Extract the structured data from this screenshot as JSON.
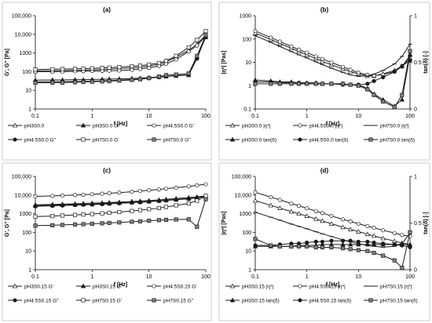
{
  "colors": {
    "frame": "#bfbfbf",
    "series": "#1a1a1a",
    "marker_fill_open": "#ffffff",
    "marker_fill_gray": "#808080"
  },
  "chart_data": [
    {
      "panel_label": "(a)",
      "type": "line",
      "x_scale": "log",
      "xlim": [
        0.1,
        100
      ],
      "xlabel": "f [Hz]",
      "x_ticks": [
        "0.1",
        "1",
        "10",
        "100"
      ],
      "y_scale": "log",
      "ylim": [
        1,
        100000
      ],
      "ylabel": "G', G'' [Pa]",
      "y_ticks": [
        "1",
        "10",
        "100",
        "1000",
        "10,000",
        "100,000"
      ],
      "x": [
        0.1,
        0.2,
        0.3,
        0.5,
        0.7,
        1,
        1.5,
        2,
        3,
        5,
        7,
        10,
        15,
        20,
        30,
        50,
        70,
        100
      ],
      "legend": {
        "placement": "bottom",
        "columns": 3
      },
      "series": [
        {
          "name": "pH3S0.0",
          "marker": "triangle-open",
          "y_axis": "left",
          "values": [
            110,
            112,
            114,
            118,
            120,
            125,
            130,
            135,
            145,
            160,
            175,
            200,
            250,
            330,
            600,
            1400,
            3000,
            9000
          ]
        },
        {
          "name": "pH3S0.0 G''",
          "marker": "triangle-filled",
          "y_axis": "left",
          "values": [
            35,
            36,
            36,
            37,
            37,
            38,
            39,
            40,
            41,
            43,
            45,
            48,
            52,
            55,
            60,
            65,
            600,
            7000
          ]
        },
        {
          "name": "pH4.5S0.0  G'",
          "marker": "circle-open",
          "y_axis": "left",
          "values": [
            100,
            100,
            102,
            104,
            106,
            108,
            110,
            112,
            115,
            125,
            140,
            160,
            200,
            260,
            450,
            1200,
            2500,
            8000
          ]
        },
        {
          "name": "pH4.5S0.0  G''",
          "marker": "circle-filled",
          "y_axis": "left",
          "values": [
            28,
            29,
            29,
            30,
            30,
            31,
            32,
            33,
            35,
            38,
            40,
            45,
            50,
            55,
            62,
            68,
            500,
            8000
          ]
        },
        {
          "name": "pH7S0.0 G'",
          "marker": "square-open",
          "y_axis": "left",
          "values": [
            130,
            135,
            138,
            142,
            146,
            150,
            158,
            165,
            175,
            195,
            210,
            240,
            290,
            380,
            700,
            2000,
            5000,
            15000
          ]
        },
        {
          "name": "pH7S0.0 G''",
          "marker": "square-gray",
          "y_axis": "left",
          "values": [
            25,
            26,
            26,
            27,
            28,
            29,
            30,
            31,
            33,
            36,
            39,
            45,
            55,
            65,
            70,
            80,
            700,
            9000
          ]
        }
      ]
    },
    {
      "panel_label": "(b)",
      "type": "line",
      "x_scale": "log",
      "xlim": [
        0.1,
        100
      ],
      "xlabel": "f [Hz]",
      "x_ticks": [
        "0.1",
        "1",
        "10",
        "100"
      ],
      "y_scale": "log",
      "ylim": [
        0.1,
        1000
      ],
      "ylabel": "|η*| [Pas]",
      "y_ticks": [
        "0.1",
        "1",
        "10",
        "100",
        "1000"
      ],
      "y2_scale": "linear",
      "y2lim": [
        0,
        1
      ],
      "y2label": "tan(δ) [-]",
      "y2_ticks": [
        "0",
        "0.5",
        "1"
      ],
      "x": [
        0.1,
        0.2,
        0.3,
        0.5,
        0.7,
        1,
        1.5,
        2,
        3,
        5,
        7,
        10,
        15,
        20,
        30,
        50,
        70,
        100
      ],
      "legend": {
        "placement": "bottom",
        "columns": 3
      },
      "series": [
        {
          "name": "pH3S0.0  |η*|",
          "marker": "triangle-open",
          "y_axis": "left",
          "values": [
            180,
            95,
            64,
            40,
            29,
            21,
            14.5,
            11,
            7.8,
            5.2,
            4.0,
            3.2,
            2.6,
            2.6,
            3.2,
            4.5,
            7,
            15
          ]
        },
        {
          "name": "pH4.5S0.0  |η*|",
          "marker": "circle-open",
          "y_axis": "left",
          "values": [
            220,
            115,
            78,
            48,
            35,
            26,
            18,
            14,
            9.8,
            6.4,
            4.8,
            3.6,
            2.9,
            2.7,
            3.0,
            4.0,
            6.5,
            20
          ]
        },
        {
          "name": "pH7S0.0 |η*|",
          "marker": "line-open",
          "y_axis": "left",
          "values": [
            140,
            72,
            48,
            29,
            21,
            15.5,
            10.5,
            8,
            5.6,
            3.7,
            2.9,
            2.5,
            2.6,
            3.1,
            4.5,
            8.5,
            18,
            60
          ]
        },
        {
          "name": "pH3S0.0  tan(δ)",
          "marker": "triangle-filled",
          "y_axis": "right",
          "values": [
            0.31,
            0.3,
            0.29,
            0.29,
            0.28,
            0.28,
            0.28,
            0.27,
            0.27,
            0.27,
            0.26,
            0.26,
            0.22,
            0.16,
            0.1,
            0.03,
            0.1,
            0.58
          ]
        },
        {
          "name": "pH4.5S0.0  tan(δ)",
          "marker": "circle-filled",
          "y_axis": "right",
          "values": [
            0.29,
            0.29,
            0.28,
            0.28,
            0.28,
            0.27,
            0.27,
            0.27,
            0.27,
            0.26,
            0.26,
            0.26,
            0.27,
            0.3,
            0.34,
            0.4,
            0.46,
            0.52
          ]
        },
        {
          "name": "pH7S0.0  tan(δ)",
          "marker": "square-gray",
          "y_axis": "right",
          "values": [
            0.27,
            0.27,
            0.27,
            0.27,
            0.27,
            0.27,
            0.27,
            0.27,
            0.27,
            0.27,
            0.26,
            0.25,
            0.21,
            0.15,
            0.08,
            0.02,
            0.15,
            0.62
          ]
        }
      ]
    },
    {
      "panel_label": "(c)",
      "type": "line",
      "x_scale": "log",
      "xlim": [
        0.1,
        100
      ],
      "xlabel": "f [Hz]",
      "x_ticks": [
        "0.1",
        "1",
        "10",
        "100"
      ],
      "y_scale": "log",
      "ylim": [
        1,
        100000
      ],
      "ylabel": "G', G'' [Pa]",
      "y_ticks": [
        "1",
        "10",
        "100",
        "1000",
        "10,000",
        "100,000"
      ],
      "x": [
        0.1,
        0.2,
        0.3,
        0.5,
        0.7,
        1,
        1.5,
        2,
        3,
        5,
        7,
        10,
        15,
        20,
        30,
        50,
        70,
        100
      ],
      "legend": {
        "placement": "bottom",
        "columns": 3
      },
      "series": [
        {
          "name": "pH3S0.15 G'",
          "marker": "triangle-open",
          "y_axis": "left",
          "values": [
            3000,
            3150,
            3250,
            3400,
            3550,
            3700,
            3850,
            4000,
            4200,
            4550,
            4800,
            5100,
            5500,
            5900,
            6500,
            7300,
            8000,
            9000
          ]
        },
        {
          "name": "pH3S0.15 G''",
          "marker": "triangle-filled",
          "y_axis": "left",
          "values": [
            2700,
            2850,
            2950,
            3100,
            3200,
            3300,
            3450,
            3600,
            3800,
            4100,
            4300,
            4600,
            5000,
            5300,
            5800,
            6500,
            7200,
            8000
          ]
        },
        {
          "name": "pH4.5S0.15 G'",
          "marker": "circle-open",
          "y_axis": "left",
          "values": [
            8500,
            9000,
            9500,
            10000,
            10500,
            11000,
            11800,
            12500,
            13500,
            15000,
            16500,
            18000,
            20000,
            22000,
            25000,
            29000,
            33000,
            38000
          ]
        },
        {
          "name": "pH4.5S0.15 G''",
          "marker": "circle-filled",
          "y_axis": "left",
          "values": [
            2500,
            2650,
            2750,
            2900,
            3000,
            3100,
            3250,
            3400,
            3600,
            3900,
            4100,
            4400,
            4800,
            5100,
            5600,
            6200,
            7000,
            9000
          ]
        },
        {
          "name": "pH7S0.15 G'",
          "marker": "square-open",
          "y_axis": "left",
          "values": [
            700,
            750,
            800,
            860,
            910,
            960,
            1050,
            1120,
            1230,
            1400,
            1550,
            1750,
            2000,
            2300,
            2800,
            3600,
            5000,
            9000
          ]
        },
        {
          "name": "pH7S0.15 G''",
          "marker": "square-gray",
          "y_axis": "left",
          "values": [
            230,
            240,
            250,
            265,
            275,
            290,
            305,
            320,
            340,
            370,
            390,
            420,
            450,
            470,
            490,
            500,
            200,
            6000
          ]
        }
      ]
    },
    {
      "panel_label": "(d)",
      "type": "line",
      "x_scale": "log",
      "xlim": [
        0.1,
        100
      ],
      "xlabel": "f [Hz]",
      "x_ticks": [
        "0.1",
        "1",
        "10",
        "100"
      ],
      "y_scale": "log",
      "ylim": [
        1,
        100000
      ],
      "ylabel": "|η*| [Pas]",
      "y_ticks": [
        "1",
        "10",
        "100",
        "1000",
        "10,000",
        "100,000"
      ],
      "y2_scale": "linear",
      "y2lim": [
        0,
        1
      ],
      "y2label": "tan(δ) [-]",
      "y2_ticks": [
        "0",
        "0.5",
        "1"
      ],
      "x": [
        0.1,
        0.2,
        0.3,
        0.5,
        0.7,
        1,
        1.5,
        2,
        3,
        5,
        7,
        10,
        15,
        20,
        30,
        50,
        70,
        100
      ],
      "legend": {
        "placement": "bottom",
        "columns": 3
      },
      "series": [
        {
          "name": "pH3S0.15 |η*|",
          "marker": "triangle-open",
          "y_axis": "left",
          "values": [
            5000,
            2800,
            2000,
            1300,
            1000,
            750,
            520,
            410,
            290,
            190,
            145,
            110,
            80,
            65,
            48,
            34,
            27,
            22
          ]
        },
        {
          "name": "pH4.5S0.15 |η*|",
          "marker": "circle-open",
          "y_axis": "left",
          "values": [
            14000,
            7800,
            5500,
            3500,
            2650,
            1950,
            1380,
            1080,
            760,
            500,
            385,
            290,
            215,
            175,
            130,
            92,
            72,
            62
          ]
        },
        {
          "name": "pH7S0.15 |η*|",
          "marker": "line-open",
          "y_axis": "left",
          "values": [
            1200,
            650,
            450,
            280,
            210,
            155,
            108,
            84,
            60,
            40,
            31,
            25,
            20,
            18,
            16,
            18,
            25,
            90
          ]
        },
        {
          "name": "pH3S0.15 tan(δ)",
          "marker": "triangle-filled",
          "y_axis": "right",
          "values": [
            0.25,
            0.25,
            0.25,
            0.25,
            0.26,
            0.26,
            0.26,
            0.27,
            0.27,
            0.27,
            0.27,
            0.27,
            0.27,
            0.27,
            0.27,
            0.27,
            0.27,
            0.27
          ]
        },
        {
          "name": "pH4.5S0.15 tan(δ)",
          "marker": "circle-filled",
          "y_axis": "right",
          "values": [
            0.26,
            0.26,
            0.27,
            0.28,
            0.28,
            0.29,
            0.3,
            0.3,
            0.31,
            0.31,
            0.31,
            0.3,
            0.3,
            0.29,
            0.28,
            0.27,
            0.26,
            0.24
          ]
        },
        {
          "name": "pH7S0.15 tan(δ)",
          "marker": "square-gray",
          "y_axis": "right",
          "values": [
            0.33,
            0.26,
            0.25,
            0.25,
            0.25,
            0.25,
            0.24,
            0.24,
            0.24,
            0.23,
            0.22,
            0.21,
            0.2,
            0.18,
            0.15,
            0.1,
            0.02,
            0.4
          ]
        }
      ]
    }
  ]
}
